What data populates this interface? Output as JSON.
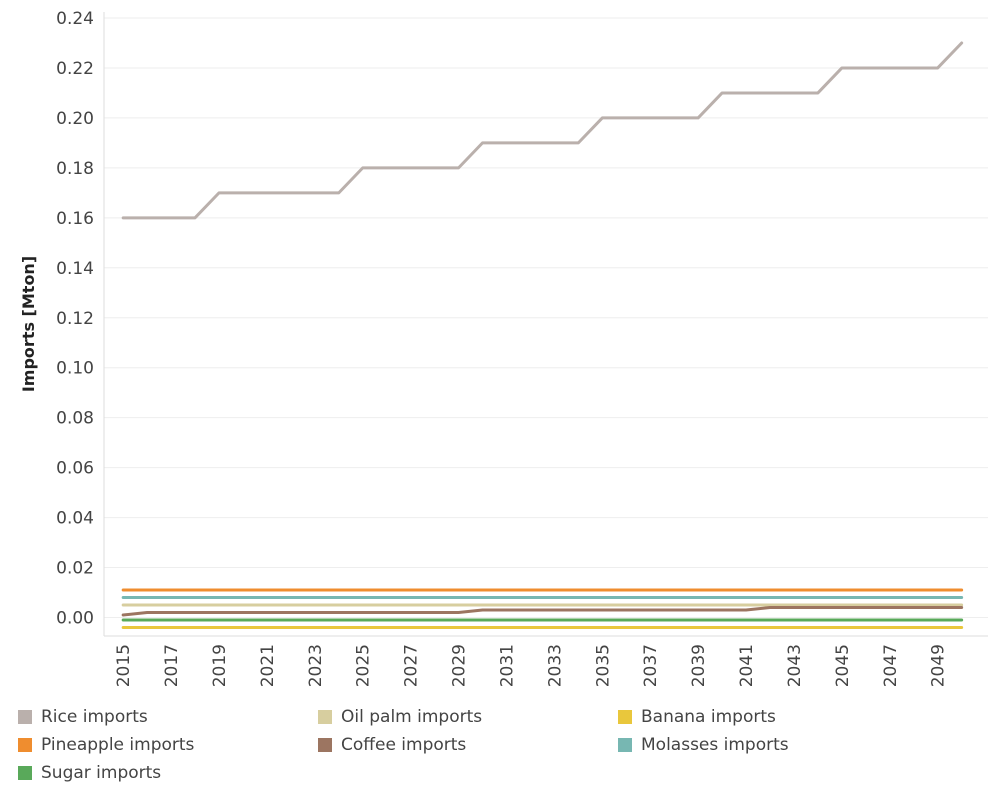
{
  "chart_data": {
    "type": "line",
    "title": "",
    "xlabel": "",
    "ylabel": "Imports [Mton]",
    "ylim": [
      -0.005,
      0.24
    ],
    "yticks": [
      "0.24",
      "0.22",
      "0.20",
      "0.18",
      "0.16",
      "0.14",
      "0.12",
      "0.10",
      "0.08",
      "0.06",
      "0.04",
      "0.02",
      "0.00"
    ],
    "xticks": [
      "2015",
      "2017",
      "2019",
      "2021",
      "2023",
      "2025",
      "2027",
      "2029",
      "2031",
      "2033",
      "2035",
      "2037",
      "2039",
      "2041",
      "2043",
      "2045",
      "2047",
      "2049"
    ],
    "x": [
      2015,
      2016,
      2017,
      2018,
      2019,
      2020,
      2021,
      2022,
      2023,
      2024,
      2025,
      2026,
      2027,
      2028,
      2029,
      2030,
      2031,
      2032,
      2033,
      2034,
      2035,
      2036,
      2037,
      2038,
      2039,
      2040,
      2041,
      2042,
      2043,
      2044,
      2045,
      2046,
      2047,
      2048,
      2049,
      2050
    ],
    "grid": true,
    "legend_position": "bottom",
    "series": [
      {
        "name": "Rice imports",
        "color": "#bab0ac",
        "values": [
          0.16,
          0.16,
          0.16,
          0.16,
          0.17,
          0.17,
          0.17,
          0.17,
          0.17,
          0.17,
          0.18,
          0.18,
          0.18,
          0.18,
          0.18,
          0.19,
          0.19,
          0.19,
          0.19,
          0.19,
          0.2,
          0.2,
          0.2,
          0.2,
          0.2,
          0.21,
          0.21,
          0.21,
          0.21,
          0.21,
          0.22,
          0.22,
          0.22,
          0.22,
          0.22,
          0.23
        ]
      },
      {
        "name": "Oil palm imports",
        "color": "#d7ce9f",
        "values": [
          0.005,
          0.005,
          0.005,
          0.005,
          0.005,
          0.005,
          0.005,
          0.005,
          0.005,
          0.005,
          0.005,
          0.005,
          0.005,
          0.005,
          0.005,
          0.005,
          0.005,
          0.005,
          0.005,
          0.005,
          0.005,
          0.005,
          0.005,
          0.005,
          0.005,
          0.005,
          0.005,
          0.005,
          0.005,
          0.005,
          0.005,
          0.005,
          0.005,
          0.005,
          0.005,
          0.005
        ]
      },
      {
        "name": "Banana imports",
        "color": "#e9c73c",
        "values": [
          -0.004,
          -0.004,
          -0.004,
          -0.004,
          -0.004,
          -0.004,
          -0.004,
          -0.004,
          -0.004,
          -0.004,
          -0.004,
          -0.004,
          -0.004,
          -0.004,
          -0.004,
          -0.004,
          -0.004,
          -0.004,
          -0.004,
          -0.004,
          -0.004,
          -0.004,
          -0.004,
          -0.004,
          -0.004,
          -0.004,
          -0.004,
          -0.004,
          -0.004,
          -0.004,
          -0.004,
          -0.004,
          -0.004,
          -0.004,
          -0.004,
          -0.004
        ]
      },
      {
        "name": "Pineapple imports",
        "color": "#ef8d2f",
        "values": [
          0.011,
          0.011,
          0.011,
          0.011,
          0.011,
          0.011,
          0.011,
          0.011,
          0.011,
          0.011,
          0.011,
          0.011,
          0.011,
          0.011,
          0.011,
          0.011,
          0.011,
          0.011,
          0.011,
          0.011,
          0.011,
          0.011,
          0.011,
          0.011,
          0.011,
          0.011,
          0.011,
          0.011,
          0.011,
          0.011,
          0.011,
          0.011,
          0.011,
          0.011,
          0.011,
          0.011
        ]
      },
      {
        "name": "Coffee imports",
        "color": "#9c7561",
        "values": [
          0.001,
          0.002,
          0.002,
          0.002,
          0.002,
          0.002,
          0.002,
          0.002,
          0.002,
          0.002,
          0.002,
          0.002,
          0.002,
          0.002,
          0.002,
          0.003,
          0.003,
          0.003,
          0.003,
          0.003,
          0.003,
          0.003,
          0.003,
          0.003,
          0.003,
          0.003,
          0.003,
          0.004,
          0.004,
          0.004,
          0.004,
          0.004,
          0.004,
          0.004,
          0.004,
          0.004
        ]
      },
      {
        "name": "Molasses imports",
        "color": "#77b7b2",
        "values": [
          0.008,
          0.008,
          0.008,
          0.008,
          0.008,
          0.008,
          0.008,
          0.008,
          0.008,
          0.008,
          0.008,
          0.008,
          0.008,
          0.008,
          0.008,
          0.008,
          0.008,
          0.008,
          0.008,
          0.008,
          0.008,
          0.008,
          0.008,
          0.008,
          0.008,
          0.008,
          0.008,
          0.008,
          0.008,
          0.008,
          0.008,
          0.008,
          0.008,
          0.008,
          0.008,
          0.008
        ]
      },
      {
        "name": "Sugar imports",
        "color": "#59a95a",
        "values": [
          -0.001,
          -0.001,
          -0.001,
          -0.001,
          -0.001,
          -0.001,
          -0.001,
          -0.001,
          -0.001,
          -0.001,
          -0.001,
          -0.001,
          -0.001,
          -0.001,
          -0.001,
          -0.001,
          -0.001,
          -0.001,
          -0.001,
          -0.001,
          -0.001,
          -0.001,
          -0.001,
          -0.001,
          -0.001,
          -0.001,
          -0.001,
          -0.001,
          -0.001,
          -0.001,
          -0.001,
          -0.001,
          -0.001,
          -0.001,
          -0.001,
          -0.001
        ]
      }
    ]
  }
}
